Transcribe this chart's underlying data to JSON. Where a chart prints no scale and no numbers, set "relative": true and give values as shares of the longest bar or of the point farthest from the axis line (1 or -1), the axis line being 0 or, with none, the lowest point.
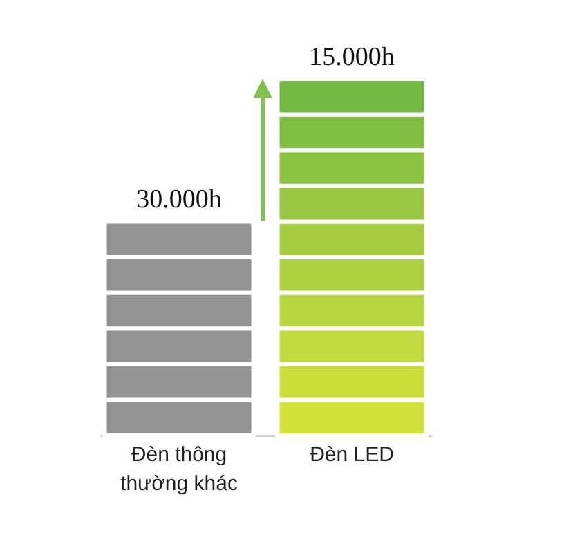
{
  "chart_data": {
    "type": "bar",
    "stacked": true,
    "relative": true,
    "categories": [
      "Đèn thông thường khác",
      "Đèn LED"
    ],
    "series": [
      {
        "values": [
          0.1,
          0.1
        ],
        "colors": [
          "#939393",
          "#d2e23a"
        ]
      },
      {
        "values": [
          0.1,
          0.1
        ],
        "colors": [
          "#939393",
          "#cade3b"
        ]
      },
      {
        "values": [
          0.1,
          0.1
        ],
        "colors": [
          "#939393",
          "#c1da3c"
        ]
      },
      {
        "values": [
          0.1,
          0.1
        ],
        "colors": [
          "#939393",
          "#b7d53e"
        ]
      },
      {
        "values": [
          0.1,
          0.1
        ],
        "colors": [
          "#939393",
          "#aed13f"
        ]
      },
      {
        "values": [
          0.1,
          0.1
        ],
        "colors": [
          "#939393",
          "#a3cc40"
        ]
      },
      {
        "values": [
          null,
          0.1
        ],
        "colors": [
          null,
          "#98c741"
        ]
      },
      {
        "values": [
          null,
          0.1
        ],
        "colors": [
          null,
          "#8dc342"
        ]
      },
      {
        "values": [
          null,
          0.1
        ],
        "colors": [
          null,
          "#80be43"
        ]
      },
      {
        "values": [
          null,
          0.1
        ],
        "colors": [
          null,
          "#72b944"
        ]
      }
    ],
    "annotations": [
      {
        "text": "30.000h",
        "x": "Đèn thông thường khác",
        "y": 0.6
      },
      {
        "text": "15.000h",
        "x": "Đèn LED",
        "y": 1
      }
    ]
  }
}
